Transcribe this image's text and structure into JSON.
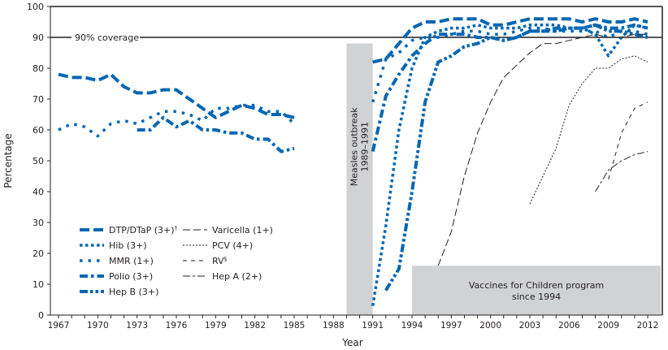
{
  "chart_data": {
    "type": "line",
    "title": "",
    "xlabel": "Year",
    "ylabel": "Percentage",
    "xlim": [
      1967,
      2012
    ],
    "ylim": [
      0,
      100
    ],
    "y_ticks": [
      0,
      10,
      20,
      30,
      40,
      50,
      60,
      70,
      80,
      90,
      100
    ],
    "x_tick_labels": [
      "1967",
      "1970",
      "1973",
      "1976",
      "1979",
      "1982",
      "1985",
      "1988",
      "1991",
      "1994",
      "1997",
      "2000",
      "2003",
      "2006",
      "2009",
      "2012"
    ],
    "grid": false,
    "legend_placement": "bottom-left",
    "reference_line": {
      "value": 90,
      "label": "90% coverage"
    },
    "shaded_regions": [
      {
        "label": "Measles outbreak",
        "sublabel": "1989–1991",
        "x_range": [
          1989,
          1991
        ],
        "y_max": 88
      },
      {
        "label": "Vaccines for Children program",
        "sublabel": "since 1994",
        "x_range": [
          1994,
          2013
        ],
        "y_max": 16
      }
    ],
    "colors": {
      "blue": "#0066b3",
      "black": "#231f20",
      "shade": "#d1d2d4"
    },
    "series": [
      {
        "name": "DTP/DTaP (3+)",
        "sup": "†",
        "color": "#0066b3",
        "style": "long-dash",
        "segments": [
          [
            [
              1967,
              78
            ],
            [
              1968,
              77
            ],
            [
              1969,
              77
            ],
            [
              1970,
              76
            ],
            [
              1971,
              78
            ],
            [
              1972,
              74
            ],
            [
              1973,
              72
            ],
            [
              1974,
              72
            ],
            [
              1975,
              73
            ],
            [
              1976,
              73
            ],
            [
              1977,
              70
            ],
            [
              1978,
              67
            ],
            [
              1979,
              64
            ],
            [
              1980,
              66
            ],
            [
              1981,
              68
            ],
            [
              1982,
              67
            ],
            [
              1983,
              65
            ],
            [
              1984,
              65
            ],
            [
              1985,
              64
            ]
          ],
          [
            [
              1991,
              82
            ],
            [
              1992,
              83
            ],
            [
              1993,
              88
            ],
            [
              1994,
              93
            ],
            [
              1995,
              95
            ],
            [
              1996,
              95
            ],
            [
              1997,
              96
            ],
            [
              1998,
              96
            ],
            [
              1999,
              96
            ],
            [
              2000,
              94
            ],
            [
              2001,
              94
            ],
            [
              2002,
              95
            ],
            [
              2003,
              96
            ],
            [
              2004,
              96
            ],
            [
              2005,
              96
            ],
            [
              2006,
              96
            ],
            [
              2007,
              95
            ],
            [
              2008,
              96
            ],
            [
              2009,
              95
            ],
            [
              2010,
              95
            ],
            [
              2011,
              96
            ],
            [
              2012,
              95
            ]
          ]
        ]
      },
      {
        "name": "Hib (3+)",
        "color": "#0066b3",
        "style": "dotted",
        "segments": [
          [
            [
              1991,
              3
            ],
            [
              1992,
              29
            ],
            [
              1993,
              60
            ],
            [
              1994,
              80
            ],
            [
              1995,
              90
            ],
            [
              1996,
              92
            ],
            [
              1997,
              93
            ],
            [
              1998,
              93
            ],
            [
              1999,
              94
            ],
            [
              2000,
              93
            ],
            [
              2001,
              93
            ],
            [
              2002,
              93
            ],
            [
              2003,
              94
            ],
            [
              2004,
              94
            ],
            [
              2005,
              94
            ],
            [
              2006,
              93
            ],
            [
              2007,
              93
            ],
            [
              2008,
              91
            ],
            [
              2009,
              84
            ],
            [
              2010,
              90
            ],
            [
              2011,
              94
            ],
            [
              2012,
              93
            ]
          ]
        ]
      },
      {
        "name": "MMR (1+)",
        "color": "#0066b3",
        "style": "spaced-dot",
        "segments": [
          [
            [
              1967,
              60
            ],
            [
              1968,
              62
            ],
            [
              1969,
              61
            ],
            [
              1970,
              58
            ],
            [
              1971,
              62
            ],
            [
              1972,
              63
            ],
            [
              1973,
              62
            ],
            [
              1974,
              64
            ],
            [
              1975,
              66
            ],
            [
              1976,
              66
            ],
            [
              1977,
              65
            ],
            [
              1978,
              63
            ],
            [
              1979,
              67
            ],
            [
              1980,
              67
            ],
            [
              1981,
              68
            ],
            [
              1982,
              68
            ],
            [
              1983,
              66
            ],
            [
              1984,
              66
            ],
            [
              1985,
              62
            ]
          ],
          [
            [
              1991,
              69
            ],
            [
              1992,
              83
            ],
            [
              1993,
              85
            ],
            [
              1994,
              89
            ],
            [
              1995,
              90
            ],
            [
              1996,
              90
            ],
            [
              1997,
              91
            ],
            [
              1998,
              92
            ],
            [
              1999,
              92
            ],
            [
              2000,
              91
            ],
            [
              2001,
              91
            ],
            [
              2002,
              92
            ],
            [
              2003,
              93
            ],
            [
              2004,
              93
            ],
            [
              2005,
              92
            ],
            [
              2006,
              92
            ],
            [
              2007,
              92
            ],
            [
              2008,
              92
            ],
            [
              2009,
              90
            ],
            [
              2010,
              92
            ],
            [
              2011,
              92
            ],
            [
              2012,
              91
            ]
          ]
        ]
      },
      {
        "name": "Polio (3+)",
        "color": "#0066b3",
        "style": "dash-dot",
        "segments": [
          [
            [
              1973,
              60
            ],
            [
              1974,
              60
            ],
            [
              1975,
              64
            ],
            [
              1976,
              61
            ],
            [
              1977,
              63
            ],
            [
              1978,
              60
            ],
            [
              1979,
              60
            ],
            [
              1980,
              59
            ],
            [
              1981,
              59
            ],
            [
              1982,
              57
            ],
            [
              1983,
              57
            ],
            [
              1984,
              53
            ],
            [
              1985,
              54
            ]
          ],
          [
            [
              1991,
              53
            ],
            [
              1992,
              71
            ],
            [
              1993,
              78
            ],
            [
              1994,
              84
            ],
            [
              1995,
              88
            ],
            [
              1996,
              91
            ],
            [
              1997,
              91
            ],
            [
              1998,
              91
            ],
            [
              1999,
              90
            ],
            [
              2000,
              90
            ],
            [
              2001,
              89
            ],
            [
              2002,
              90
            ],
            [
              2003,
              92
            ],
            [
              2004,
              92
            ],
            [
              2005,
              92
            ],
            [
              2006,
              93
            ],
            [
              2007,
              93
            ],
            [
              2008,
              94
            ],
            [
              2009,
              93
            ],
            [
              2010,
              93
            ],
            [
              2011,
              94
            ],
            [
              2012,
              93
            ]
          ]
        ]
      },
      {
        "name": "Hep B (3+)",
        "color": "#0066b3",
        "style": "dash-dot-dot",
        "segments": [
          [
            [
              1992,
              8
            ],
            [
              1993,
              15
            ],
            [
              1994,
              40
            ],
            [
              1995,
              69
            ],
            [
              1996,
              82
            ],
            [
              1997,
              84
            ],
            [
              1998,
              87
            ],
            [
              1999,
              88
            ],
            [
              2000,
              90
            ],
            [
              2001,
              89
            ],
            [
              2002,
              90
            ],
            [
              2003,
              92
            ],
            [
              2004,
              92
            ],
            [
              2005,
              93
            ],
            [
              2006,
              93
            ],
            [
              2007,
              93
            ],
            [
              2008,
              94
            ],
            [
              2009,
              92
            ],
            [
              2010,
              92
            ],
            [
              2011,
              91
            ],
            [
              2012,
              90
            ]
          ]
        ]
      },
      {
        "name": "Varicella (1+)",
        "color": "#231f20",
        "style": "thin-long-dash",
        "segments": [
          [
            [
              1996,
              16
            ],
            [
              1997,
              27
            ],
            [
              1998,
              45
            ],
            [
              1999,
              59
            ],
            [
              2000,
              69
            ],
            [
              2001,
              77
            ],
            [
              2002,
              81
            ],
            [
              2003,
              85
            ],
            [
              2004,
              88
            ],
            [
              2005,
              88
            ],
            [
              2006,
              89
            ],
            [
              2007,
              90
            ],
            [
              2008,
              91
            ],
            [
              2009,
              90
            ],
            [
              2010,
              90
            ],
            [
              2011,
              91
            ],
            [
              2012,
              91
            ]
          ]
        ]
      },
      {
        "name": "PCV (4+)",
        "color": "#231f20",
        "style": "thin-dot",
        "segments": [
          [
            [
              2003,
              36
            ],
            [
              2004,
              45
            ],
            [
              2005,
              54
            ],
            [
              2006,
              68
            ],
            [
              2007,
              75
            ],
            [
              2008,
              80
            ],
            [
              2009,
              80
            ],
            [
              2010,
              83
            ],
            [
              2011,
              84
            ],
            [
              2012,
              82
            ]
          ]
        ]
      },
      {
        "name": "RV",
        "sup": "§",
        "color": "#231f20",
        "style": "thin-dash",
        "segments": [
          [
            [
              2009,
              44
            ],
            [
              2010,
              59
            ],
            [
              2011,
              67
            ],
            [
              2012,
              69
            ]
          ]
        ]
      },
      {
        "name": "Hep A (2+)",
        "color": "#231f20",
        "style": "thin-dash-dot",
        "segments": [
          [
            [
              2008,
              40
            ],
            [
              2009,
              47
            ],
            [
              2010,
              50
            ],
            [
              2011,
              52
            ],
            [
              2012,
              53
            ]
          ]
        ]
      }
    ]
  }
}
